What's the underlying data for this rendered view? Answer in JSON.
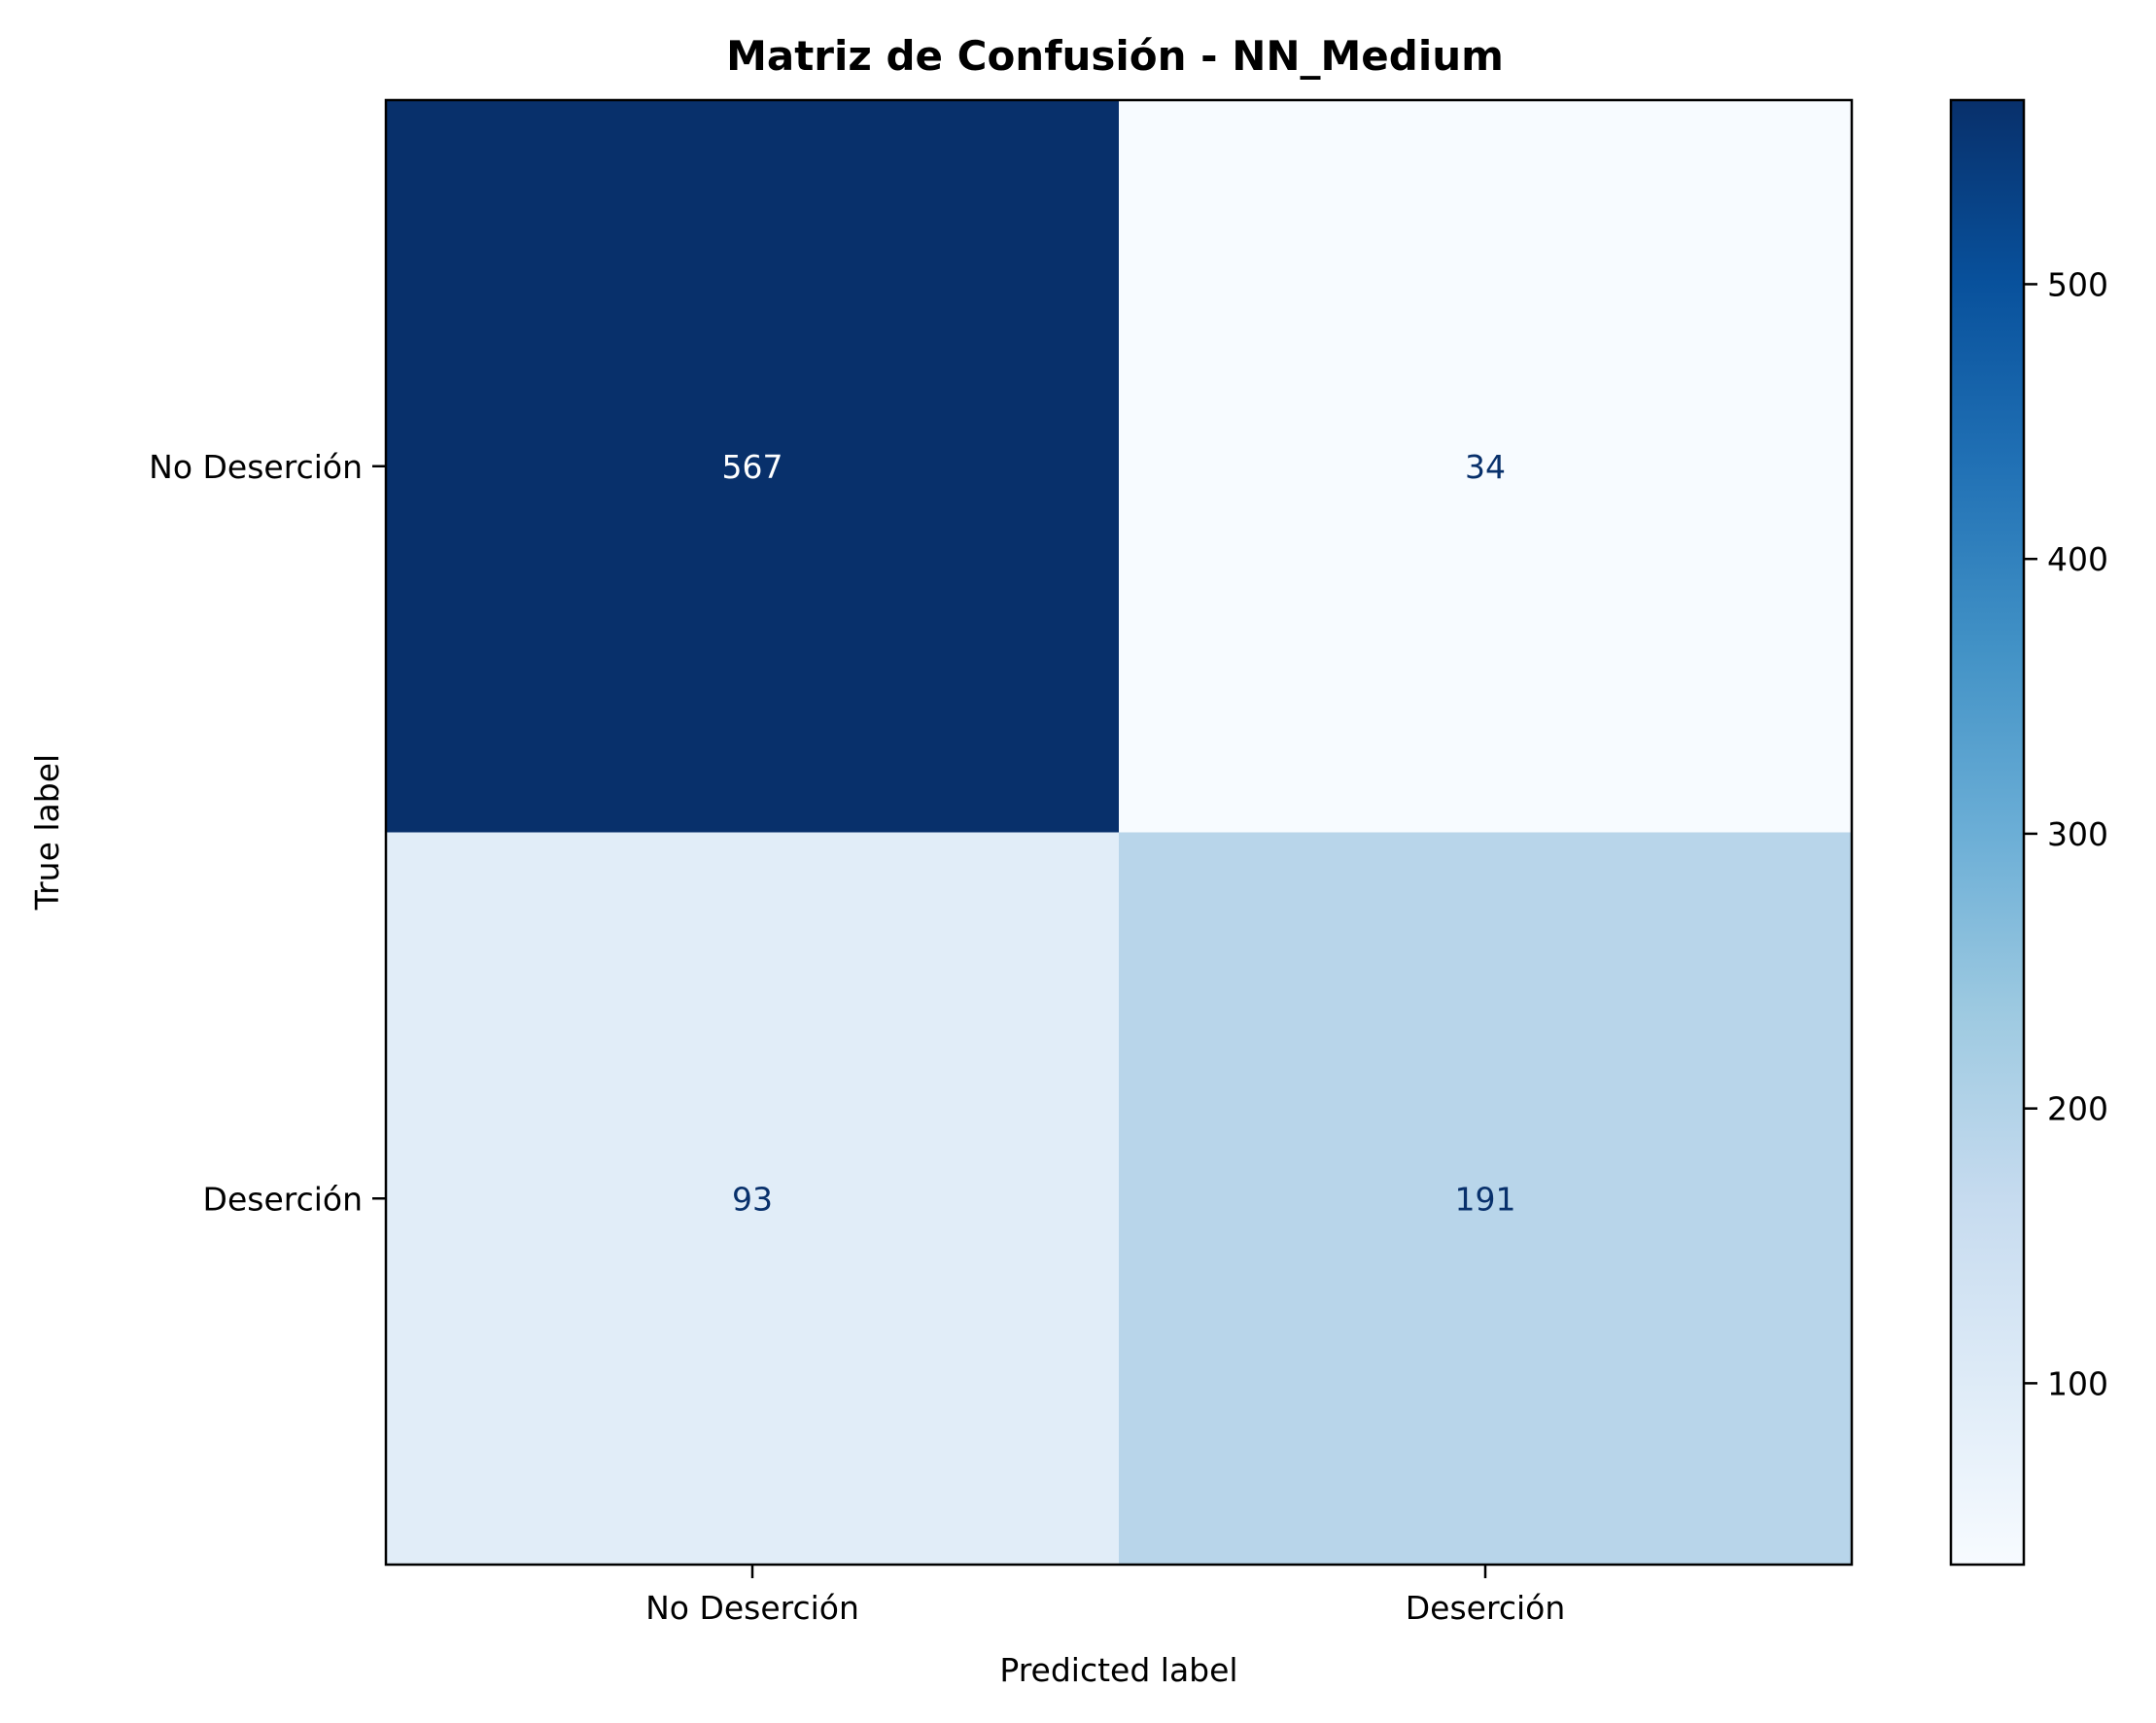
{
  "chart_data": {
    "type": "heatmap",
    "title": "Matriz de Confusión - NN_Medium",
    "xlabel": "Predicted label",
    "ylabel": "True label",
    "x_categories": [
      "No Deserción",
      "Deserción"
    ],
    "y_categories": [
      "No Deserción",
      "Deserción"
    ],
    "matrix": [
      [
        567,
        34
      ],
      [
        93,
        191
      ]
    ],
    "cell_labels": [
      [
        "567",
        "34"
      ],
      [
        "93",
        "191"
      ]
    ],
    "colormap": "Blues",
    "colormap_stops": [
      "#f7fbff",
      "#deebf7",
      "#c6dbef",
      "#9ecae1",
      "#6baed6",
      "#4292c6",
      "#2171b5",
      "#08519c",
      "#08306b"
    ],
    "colorbar": {
      "range": [
        34,
        567
      ],
      "ticks": [
        100,
        200,
        300,
        400,
        500
      ],
      "tick_labels": [
        "100",
        "200",
        "300",
        "400",
        "500"
      ]
    },
    "text_colors": {
      "dark_cell": "#ffffff",
      "light_cell": "#08306b"
    },
    "grid": false
  }
}
